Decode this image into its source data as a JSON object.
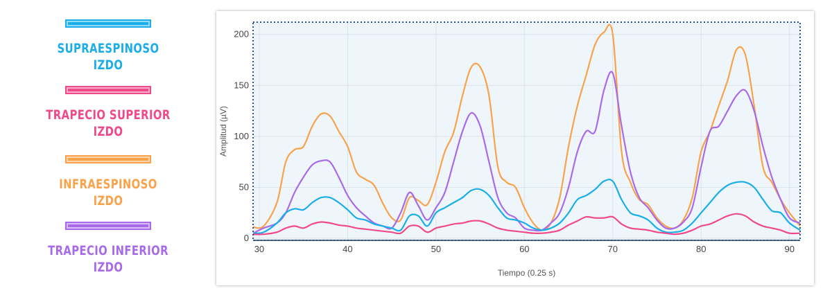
{
  "legend": [
    {
      "label": "SUPRAESPINOSO\nIZDO",
      "color": "#1aaee8"
    },
    {
      "label": "TRAPECIO SUPERIOR\nIZDO",
      "color": "#f0498a"
    },
    {
      "label": "INFRAESPINOSO\nIZDO",
      "color": "#f9a24a"
    },
    {
      "label": "TRAPECIO INFERIOR\nIZDO",
      "color": "#a86ae8"
    }
  ],
  "chart_data": {
    "type": "line",
    "xlabel": "Tiempo (0.25 s)",
    "ylabel": "Amplitud (µV)",
    "xlim": [
      29.3,
      91.2
    ],
    "ylim": [
      -2,
      212
    ],
    "xticks": [
      30,
      40,
      50,
      60,
      70,
      80,
      90
    ],
    "yticks": [
      0,
      50,
      100,
      150,
      200
    ],
    "grid": true,
    "plot_background": "#eef5fb",
    "series": [
      {
        "name": "INFRAESPINOSO IZDO",
        "color": "#f9a24a",
        "x": [
          29.3,
          30.5,
          32,
          33,
          34,
          35,
          36,
          37,
          38,
          39,
          40,
          41,
          42,
          43,
          44,
          45,
          46,
          47,
          48,
          49,
          50,
          51,
          52,
          53,
          54,
          55,
          56,
          57,
          58,
          59,
          60,
          61,
          62,
          63,
          64,
          65,
          66,
          67,
          68,
          69,
          70,
          71,
          72,
          73,
          74,
          75,
          76,
          77,
          78,
          79,
          80,
          81,
          82,
          83,
          84,
          85,
          86,
          87,
          88,
          89,
          90,
          91.2
        ],
        "y": [
          11,
          12,
          35,
          75,
          87,
          90,
          110,
          122,
          120,
          105,
          90,
          65,
          58,
          52,
          34,
          20,
          18,
          40,
          37,
          33,
          55,
          85,
          104,
          140,
          168,
          168,
          140,
          70,
          55,
          50,
          30,
          15,
          8,
          15,
          40,
          90,
          130,
          160,
          190,
          202,
          200,
          85,
          55,
          38,
          33,
          20,
          12,
          10,
          18,
          40,
          85,
          105,
          130,
          155,
          185,
          180,
          130,
          70,
          55,
          38,
          25,
          12
        ]
      },
      {
        "name": "TRAPECIO INFERIOR IZDO",
        "color": "#a86ae8",
        "x": [
          29.3,
          30.5,
          32,
          33,
          34,
          35,
          36,
          37,
          38,
          39,
          40,
          41,
          42,
          43,
          44,
          45,
          46,
          47,
          48,
          49,
          50,
          51,
          52,
          53,
          54,
          55,
          56,
          57,
          58,
          59,
          60,
          61,
          62,
          63,
          64,
          65,
          66,
          67,
          68,
          69,
          70,
          71,
          72,
          73,
          74,
          75,
          76,
          77,
          78,
          79,
          80,
          81,
          82,
          83,
          84,
          85,
          86,
          87,
          88,
          89,
          90,
          91.2
        ],
        "y": [
          5,
          10,
          15,
          25,
          45,
          60,
          72,
          76,
          75,
          60,
          42,
          30,
          22,
          15,
          12,
          10,
          25,
          45,
          32,
          18,
          30,
          45,
          75,
          105,
          123,
          110,
          75,
          40,
          25,
          20,
          10,
          8,
          8,
          15,
          25,
          50,
          85,
          105,
          105,
          145,
          162,
          110,
          65,
          40,
          30,
          18,
          10,
          10,
          16,
          30,
          70,
          105,
          110,
          125,
          140,
          145,
          125,
          90,
          60,
          38,
          20,
          15
        ]
      },
      {
        "name": "SUPRAESPINOSO IZDO",
        "color": "#1aaee8",
        "x": [
          29.3,
          30.5,
          32,
          33,
          34,
          35,
          36,
          37,
          38,
          39,
          40,
          41,
          42,
          43,
          44,
          45,
          46,
          47,
          48,
          49,
          50,
          51,
          52,
          53,
          54,
          55,
          56,
          57,
          58,
          59,
          60,
          61,
          62,
          63,
          64,
          65,
          66,
          67,
          68,
          69,
          70,
          71,
          72,
          73,
          74,
          75,
          76,
          77,
          78,
          79,
          80,
          81,
          82,
          83,
          84,
          85,
          86,
          87,
          88,
          89,
          90,
          91.2
        ],
        "y": [
          5,
          6,
          15,
          25,
          29,
          28,
          35,
          40,
          40,
          35,
          28,
          20,
          18,
          14,
          12,
          10,
          8,
          22,
          22,
          12,
          25,
          30,
          35,
          40,
          47,
          48,
          42,
          30,
          20,
          18,
          15,
          10,
          8,
          10,
          15,
          25,
          38,
          42,
          48,
          56,
          56,
          38,
          25,
          22,
          18,
          10,
          6,
          6,
          8,
          15,
          25,
          35,
          45,
          52,
          55,
          55,
          50,
          38,
          27,
          25,
          15,
          8
        ]
      },
      {
        "name": "TRAPECIO SUPERIOR IZDO",
        "color": "#f0498a",
        "x": [
          29.3,
          30.5,
          32,
          33,
          34,
          35,
          36,
          37,
          38,
          39,
          40,
          41,
          42,
          43,
          44,
          45,
          46,
          47,
          48,
          49,
          50,
          51,
          52,
          53,
          54,
          55,
          56,
          57,
          58,
          59,
          60,
          61,
          62,
          63,
          64,
          65,
          66,
          67,
          68,
          69,
          70,
          71,
          72,
          73,
          74,
          75,
          76,
          77,
          78,
          79,
          80,
          81,
          82,
          83,
          84,
          85,
          86,
          87,
          88,
          89,
          90,
          91.2
        ],
        "y": [
          4,
          4,
          6,
          10,
          12,
          10,
          14,
          16,
          15,
          13,
          12,
          10,
          9,
          8,
          7,
          6,
          5,
          12,
          12,
          6,
          10,
          12,
          14,
          15,
          17,
          17,
          14,
          10,
          8,
          7,
          6,
          5,
          5,
          6,
          8,
          13,
          17,
          21,
          20,
          20,
          21,
          14,
          10,
          9,
          8,
          6,
          5,
          4,
          5,
          8,
          12,
          14,
          18,
          22,
          24,
          22,
          16,
          12,
          10,
          8,
          5,
          5
        ]
      }
    ]
  }
}
